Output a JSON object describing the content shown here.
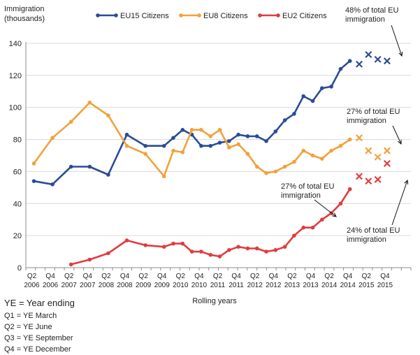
{
  "chart_data": {
    "type": "line",
    "ylabel_lines": [
      "Immigration",
      "(thousands)"
    ],
    "xlabel": "Rolling years",
    "ylim": [
      0,
      140
    ],
    "yticks": [
      0,
      20,
      40,
      60,
      80,
      100,
      120,
      140
    ],
    "grid": "horizontal",
    "legend_position": "top",
    "x_tick_labels": [
      [
        "Q2",
        "2006"
      ],
      [
        "Q4",
        "2006"
      ],
      [
        "Q2",
        "2007"
      ],
      [
        "Q4",
        "2007"
      ],
      [
        "Q2",
        "2008"
      ],
      [
        "Q4",
        "2008"
      ],
      [
        "Q2",
        "2009"
      ],
      [
        "Q4",
        "2009"
      ],
      [
        "Q2",
        "2010"
      ],
      [
        "Q4",
        "2010"
      ],
      [
        "Q2",
        "2011"
      ],
      [
        "Q4",
        "2011"
      ],
      [
        "Q2",
        "2012"
      ],
      [
        "Q4",
        "2012"
      ],
      [
        "Q2",
        "2013"
      ],
      [
        "Q4",
        "2013"
      ],
      [
        "Q2",
        "2014"
      ],
      [
        "Q4",
        "2014"
      ],
      [
        "Q2",
        "2015"
      ],
      [
        "Q4",
        "2015"
      ]
    ],
    "x_label_positions": [
      0,
      2,
      4,
      6,
      8,
      10,
      12,
      14,
      16,
      18,
      20,
      22,
      24,
      26,
      28,
      30,
      32,
      34,
      36,
      38
    ],
    "series": [
      {
        "name": "EU15 Citizens",
        "color": "#2b4c96",
        "points": [
          [
            0,
            54
          ],
          [
            2,
            52
          ],
          [
            4,
            63
          ],
          [
            6,
            63
          ],
          [
            8,
            58
          ],
          [
            10,
            83
          ],
          [
            12,
            76
          ],
          [
            14,
            76
          ],
          [
            15,
            81
          ],
          [
            16,
            86
          ],
          [
            17,
            83
          ],
          [
            18,
            76
          ],
          [
            19,
            76
          ],
          [
            20,
            78
          ],
          [
            21,
            79
          ],
          [
            22,
            83
          ],
          [
            23,
            82
          ],
          [
            24,
            82
          ],
          [
            25,
            79
          ],
          [
            26,
            85
          ],
          [
            27,
            92
          ],
          [
            28,
            96
          ],
          [
            29,
            107
          ],
          [
            30,
            104
          ],
          [
            31,
            112
          ],
          [
            32,
            113
          ],
          [
            33,
            124
          ],
          [
            34,
            129
          ]
        ],
        "projected": [
          [
            35,
            127
          ],
          [
            36,
            133
          ],
          [
            37,
            130
          ],
          [
            38,
            129
          ]
        ]
      },
      {
        "name": "EU8 Citizens",
        "color": "#f3a13a",
        "points": [
          [
            0,
            65
          ],
          [
            2,
            81
          ],
          [
            4,
            91
          ],
          [
            6,
            103
          ],
          [
            8,
            95
          ],
          [
            10,
            76
          ],
          [
            12,
            71
          ],
          [
            14,
            57
          ],
          [
            15,
            73
          ],
          [
            16,
            72
          ],
          [
            17,
            86
          ],
          [
            18,
            86
          ],
          [
            19,
            82
          ],
          [
            20,
            86
          ],
          [
            21,
            75
          ],
          [
            22,
            77
          ],
          [
            23,
            71
          ],
          [
            24,
            63
          ],
          [
            25,
            59
          ],
          [
            26,
            60
          ],
          [
            27,
            63
          ],
          [
            28,
            66
          ],
          [
            29,
            73
          ],
          [
            30,
            70
          ],
          [
            31,
            68
          ],
          [
            32,
            73
          ],
          [
            33,
            76
          ],
          [
            34,
            80
          ]
        ],
        "projected": [
          [
            35,
            81
          ],
          [
            36,
            73
          ],
          [
            37,
            69
          ],
          [
            38,
            73
          ]
        ]
      },
      {
        "name": "EU2 Citizens",
        "color": "#e03c3e",
        "points": [
          [
            4,
            2
          ],
          [
            6,
            5
          ],
          [
            8,
            9
          ],
          [
            10,
            17
          ],
          [
            12,
            14
          ],
          [
            14,
            13
          ],
          [
            15,
            15
          ],
          [
            16,
            15
          ],
          [
            17,
            10
          ],
          [
            18,
            10
          ],
          [
            19,
            8
          ],
          [
            20,
            7
          ],
          [
            21,
            11
          ],
          [
            22,
            13
          ],
          [
            23,
            12
          ],
          [
            24,
            12
          ],
          [
            25,
            10
          ],
          [
            26,
            11
          ],
          [
            27,
            13
          ],
          [
            28,
            20
          ],
          [
            29,
            25
          ],
          [
            30,
            25
          ],
          [
            31,
            30
          ],
          [
            32,
            34
          ],
          [
            33,
            40
          ],
          [
            34,
            49
          ]
        ],
        "projected": [
          [
            35,
            57
          ],
          [
            36,
            54
          ],
          [
            37,
            55
          ],
          [
            38,
            65
          ]
        ]
      }
    ],
    "annotations": [
      {
        "lines": [
          "48% of total EU",
          "immigration"
        ]
      },
      {
        "lines": [
          "27% of total EU",
          "immigration"
        ]
      },
      {
        "lines": [
          "27% of total EU",
          "immigration"
        ]
      },
      {
        "lines": [
          "24% of total EU",
          "immigration"
        ]
      }
    ]
  },
  "key": {
    "heading": "YE = Year ending",
    "items": [
      "Q1 = YE March",
      "Q2 = YE June",
      "Q3 = YE September",
      "Q4 = YE December"
    ]
  }
}
